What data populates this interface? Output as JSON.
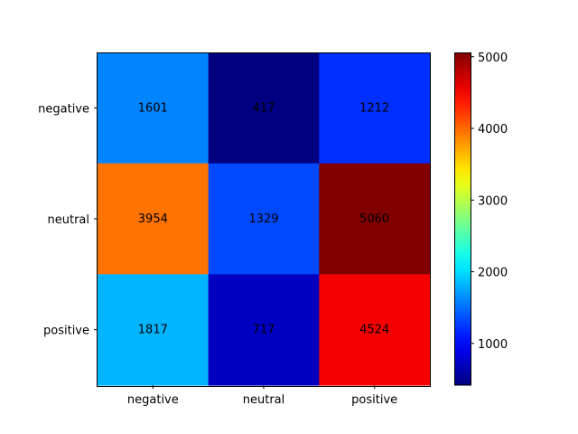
{
  "chart_data": {
    "type": "heatmap",
    "title": "",
    "xlabel": "",
    "ylabel": "",
    "x_categories": [
      "negative",
      "neutral",
      "positive"
    ],
    "y_categories": [
      "negative",
      "neutral",
      "positive"
    ],
    "values": [
      [
        1601,
        417,
        1212
      ],
      [
        3954,
        1329,
        5060
      ],
      [
        1817,
        717,
        4524
      ]
    ],
    "colormap": "jet",
    "color_range": [
      417,
      5060
    ],
    "colorbar_ticks": [
      "1000",
      "2000",
      "3000",
      "4000",
      "5000"
    ]
  }
}
